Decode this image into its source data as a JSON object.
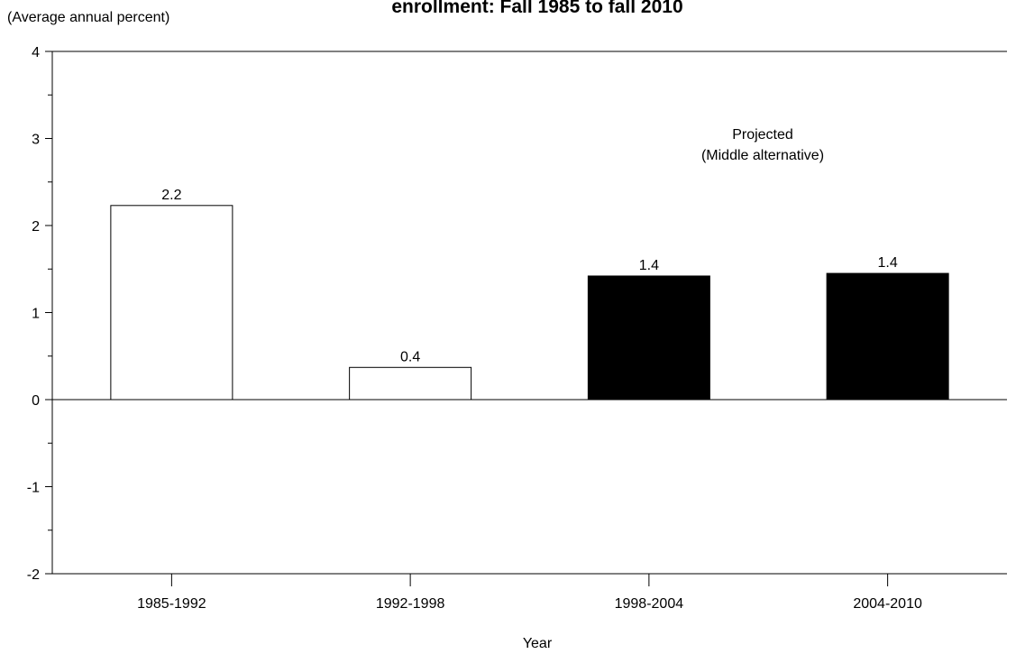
{
  "chart_data": {
    "type": "bar",
    "title": "enrollment: Fall 1985 to fall 2010",
    "ylabel": "(Average annual percent)",
    "xlabel": "Year",
    "categories": [
      "1985-1992",
      "1992-1998",
      "1998-2004",
      "2004-2010"
    ],
    "values": [
      2.23,
      0.37,
      1.42,
      1.45
    ],
    "data_labels": [
      "2.2",
      "0.4",
      "1.4",
      "1.4"
    ],
    "ylim": [
      -2,
      4
    ],
    "yticks_major": [
      "4",
      "3",
      "2",
      "1",
      "0",
      "-1",
      "-2"
    ],
    "minor_tick_step": 0.5,
    "annotation": [
      "Projected",
      "(Middle alternative)"
    ],
    "bar_fills": [
      "#ffffff",
      "#ffffff",
      "#000000",
      "#000000"
    ],
    "bar_stroke": "#000000",
    "grid": false,
    "legend": "none"
  }
}
